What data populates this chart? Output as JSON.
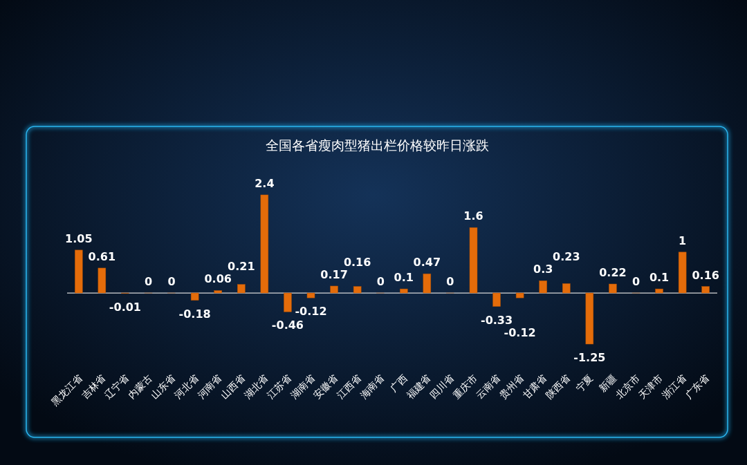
{
  "chart_data": {
    "type": "bar",
    "title": "全国各省瘦肉型猪出栏价格较昨日涨跌",
    "categories": [
      "黑龙江省",
      "吉林省",
      "辽宁省",
      "内蒙古",
      "山东省",
      "河北省",
      "河南省",
      "山西省",
      "湖北省",
      "江苏省",
      "湖南省",
      "安徽省",
      "江西省",
      "海南省",
      "广西",
      "福建省",
      "四川省",
      "重庆市",
      "云南省",
      "贵州省",
      "甘肃省",
      "陕西省",
      "宁夏",
      "新疆",
      "北京市",
      "天津市",
      "浙江省",
      "广东省"
    ],
    "values": [
      1.05,
      0.61,
      -0.01,
      0,
      0,
      -0.18,
      0.06,
      0.21,
      2.4,
      -0.46,
      -0.12,
      0.17,
      0.16,
      0,
      0.1,
      0.47,
      0,
      1.6,
      -0.33,
      -0.12,
      0.3,
      0.23,
      -1.25,
      0.22,
      0,
      0.1,
      1,
      0.16
    ],
    "color": "#e46c0a",
    "data_labels": true
  }
}
